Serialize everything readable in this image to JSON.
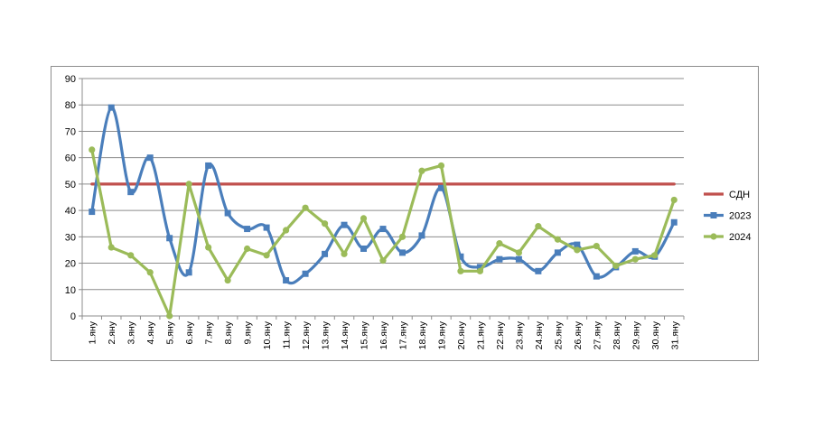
{
  "chart_data": {
    "type": "line",
    "title": "",
    "xlabel": "",
    "ylabel": "",
    "ylim": [
      0,
      90
    ],
    "yticks": [
      0,
      10,
      20,
      30,
      40,
      50,
      60,
      70,
      80,
      90
    ],
    "grid": "horizontal",
    "legend_position": "right",
    "categories": [
      "1.яну",
      "2.яну",
      "3.яну",
      "4.яну",
      "5.яну",
      "6.яну",
      "7.яну",
      "8.яну",
      "9.яну",
      "10.яну",
      "11.яну",
      "12.яну",
      "13.яну",
      "14.яну",
      "15.яну",
      "16.яну",
      "17.яну",
      "18.яну",
      "19.яну",
      "20.яну",
      "21.яну",
      "22.яну",
      "23.яну",
      "24.яну",
      "25.яну",
      "26.яну",
      "27.яну",
      "28.яну",
      "29.яну",
      "30.яну",
      "31.яну"
    ],
    "series": [
      {
        "name": "СДН",
        "color": "#c0504d",
        "marker": "none",
        "smooth": false,
        "values": [
          50,
          50,
          50,
          50,
          50,
          50,
          50,
          50,
          50,
          50,
          50,
          50,
          50,
          50,
          50,
          50,
          50,
          50,
          50,
          50,
          50,
          50,
          50,
          50,
          50,
          50,
          50,
          50,
          50,
          50,
          50
        ]
      },
      {
        "name": "2023",
        "color": "#4a7ebb",
        "marker": "square",
        "smooth": true,
        "values": [
          39.5,
          79,
          47,
          60,
          29.5,
          16.5,
          57,
          39,
          33,
          33.5,
          13.5,
          16,
          23.5,
          34.5,
          25.5,
          33,
          24,
          30.5,
          48.5,
          22.5,
          18.5,
          21.5,
          21.5,
          17,
          24,
          27,
          15,
          18.5,
          24.5,
          22.5,
          35.5
        ]
      },
      {
        "name": "2024",
        "color": "#9bbb59",
        "marker": "circle",
        "smooth": false,
        "values": [
          63,
          26,
          23,
          16.5,
          0,
          50,
          26,
          13.5,
          25.5,
          23,
          32.5,
          41,
          35,
          23.5,
          37,
          21,
          30,
          55,
          57,
          17,
          17,
          27.5,
          24,
          34,
          29,
          25,
          26.5,
          19,
          21.5,
          23,
          44
        ]
      }
    ]
  }
}
